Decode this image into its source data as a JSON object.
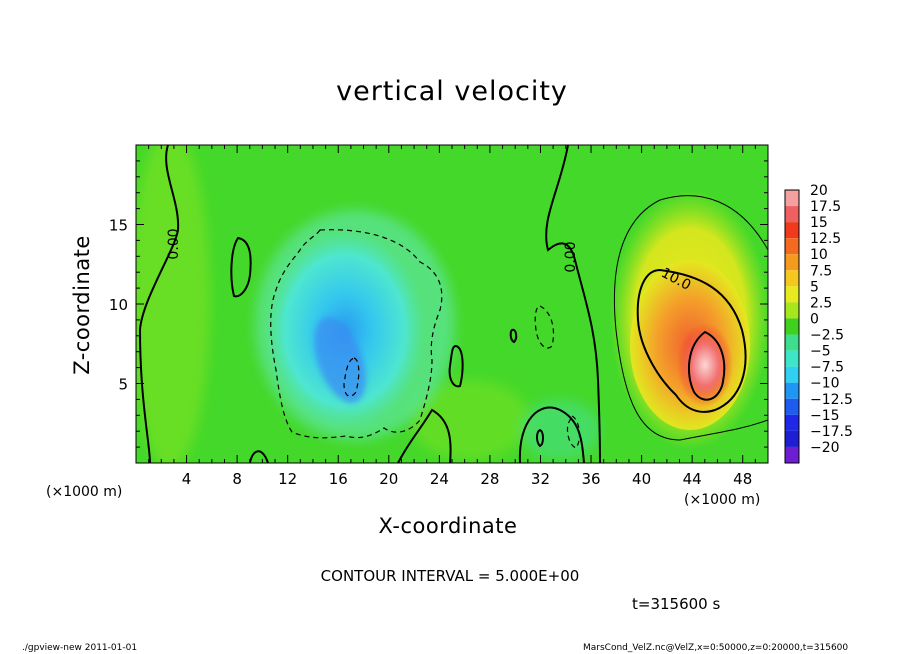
{
  "chart_data": {
    "type": "heatmap",
    "title": "vertical velocity",
    "xlabel": "X-coordinate",
    "ylabel": "Z-coordinate",
    "x_unit_left": "(×1000 m)",
    "x_unit_right": "(×1000 m)",
    "xlim": [
      0,
      50
    ],
    "ylim": [
      0,
      20
    ],
    "x_ticks": [
      "4",
      "8",
      "12",
      "16",
      "20",
      "24",
      "28",
      "32",
      "36",
      "40",
      "44",
      "48"
    ],
    "x_tick_values": [
      4,
      8,
      12,
      16,
      20,
      24,
      28,
      32,
      36,
      40,
      44,
      48
    ],
    "y_ticks": [
      "5",
      "10",
      "15"
    ],
    "y_tick_values": [
      5,
      10,
      15
    ],
    "colorbar": {
      "labels": [
        "20",
        "17.5",
        "15",
        "12.5",
        "10",
        "7.5",
        "5",
        "2.5",
        "0",
        "−2.5",
        "−5",
        "−7.5",
        "−10",
        "−12.5",
        "−15",
        "−17.5",
        "−20"
      ],
      "colors": [
        "#f4a0a0",
        "#f06060",
        "#f03a1e",
        "#f46a1e",
        "#f49a1e",
        "#f4c81e",
        "#e6ea1e",
        "#a8e61e",
        "#3ed21e",
        "#3ede8c",
        "#3ee6c8",
        "#32d0f0",
        "#1e96f4",
        "#1e5cf0",
        "#1e28e6",
        "#1e1ed2",
        "#6e1ed2"
      ]
    },
    "features": [
      {
        "kind": "updraft",
        "x": 44.5,
        "z": 6.5,
        "peak": 20
      },
      {
        "kind": "downdraft",
        "x": 17,
        "z": 7.5,
        "peak": -10
      }
    ],
    "contour_labels": [
      "0.00",
      "0.00",
      "10.0"
    ]
  },
  "contour_interval": "CONTOUR INTERVAL = 5.000E+00",
  "time_label": "t=315600 s",
  "footer_left": "./gpview-new  2011-01-01",
  "footer_right": "MarsCond_VelZ.nc@VelZ,x=0:50000,z=0:20000,t=315600"
}
